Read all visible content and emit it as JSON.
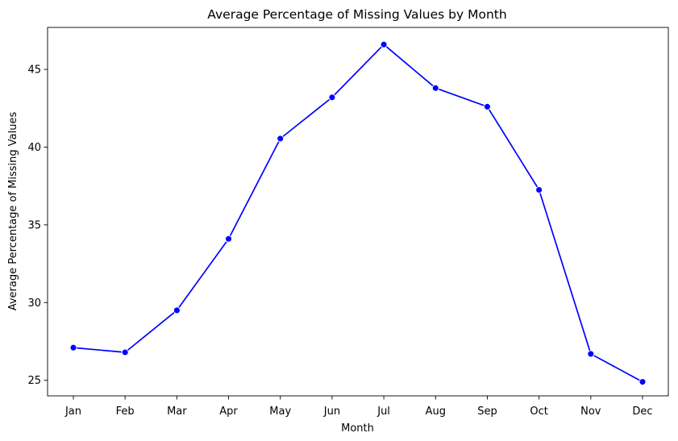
{
  "chart_data": {
    "type": "line",
    "title": "Average Percentage of Missing Values by Month",
    "xlabel": "Month",
    "ylabel": "Average Percentage of Missing Values",
    "categories": [
      "Jan",
      "Feb",
      "Mar",
      "Apr",
      "May",
      "Jun",
      "Jul",
      "Aug",
      "Sep",
      "Oct",
      "Nov",
      "Dec"
    ],
    "series": [
      {
        "values": [
          27.1,
          26.8,
          29.5,
          34.1,
          40.55,
          43.2,
          46.6,
          43.8,
          42.6,
          37.25,
          26.7,
          24.9
        ]
      }
    ],
    "yticks": [
      25,
      30,
      35,
      40,
      45
    ],
    "ylim": [
      24.0,
      47.7
    ],
    "grid": false,
    "legend": "none",
    "colors": {
      "line": "#0000ff",
      "marker": "#0000ff",
      "marker_edge": "#ffffff",
      "axes": "#000000",
      "background": "#ffffff"
    }
  }
}
